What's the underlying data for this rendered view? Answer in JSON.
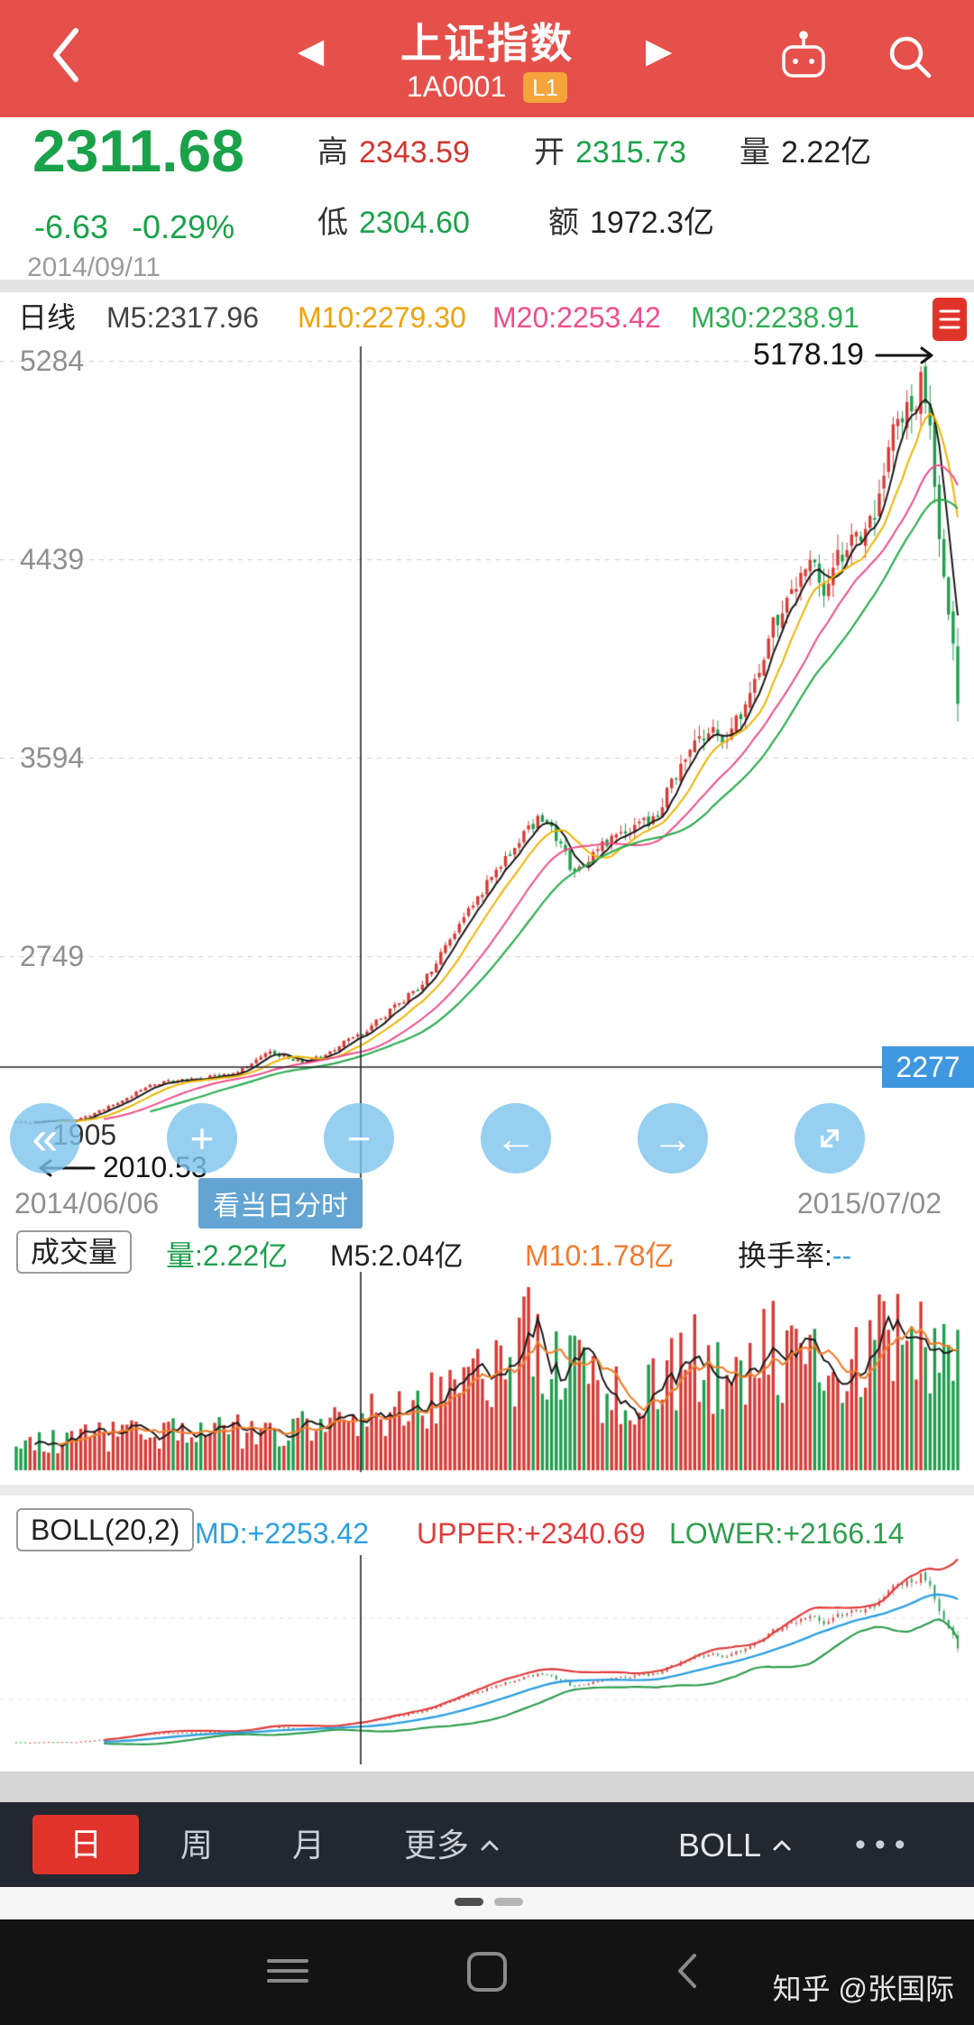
{
  "header": {
    "title": "上证指数",
    "code": "1A0001",
    "grade_badge": "L1"
  },
  "quote": {
    "price": "2311.68",
    "change": "-6.63",
    "change_pct": "-0.29%",
    "date": "2014/09/11",
    "stats": {
      "high_label": "高",
      "high_value": "2343.59",
      "open_label": "开",
      "open_value": "2315.73",
      "volume_label": "量",
      "volume_value": "2.22亿",
      "low_label": "低",
      "low_value": "2304.60",
      "amount_label": "额",
      "amount_value": "1972.3亿"
    }
  },
  "indicator_bar": {
    "period": "日线",
    "ma5": "M5:2317.96",
    "ma10": "M10:2279.30",
    "ma20": "M20:2253.42",
    "ma30": "M30:2238.91"
  },
  "main_chart": {
    "y_labels": [
      "5284",
      "4439",
      "3594",
      "2749"
    ],
    "peak_label": "5178.19",
    "low_label": "2010.53",
    "occluded_label": "1905",
    "crosshair_badge": "2277",
    "date_start": "2014/06/06",
    "date_end": "2015/07/02",
    "intraday_button": "看当日分时"
  },
  "volume_pane": {
    "title": "成交量",
    "volume": "量:2.22亿",
    "ma5": "M5:2.04亿",
    "ma10": "M10:1.78亿",
    "turnover_label": "换手率:",
    "turnover_value": "--"
  },
  "boll_pane": {
    "title": "BOLL(20,2)",
    "md": "MD:+2253.42",
    "upper": "UPPER:+2340.69",
    "lower": "LOWER:+2166.14"
  },
  "bottom_bar": {
    "tab_day": "日",
    "tab_week": "周",
    "tab_month": "月",
    "more": "更多",
    "indicator": "BOLL"
  },
  "icons": {
    "prev": "◀",
    "next": "▶",
    "rewind": "«",
    "zoom_in": "+",
    "zoom_out": "−",
    "pan_left": "←",
    "pan_right": "→",
    "more_options": "•••"
  },
  "watermark": "知乎 @张国际",
  "chart_data": {
    "type": "candlestick",
    "title": "上证指数 日线",
    "x_range": [
      "2014/06/06",
      "2015/07/02"
    ],
    "y_ticks": [
      5284,
      4439,
      3594,
      2749
    ],
    "peak_value": 5178.19,
    "low_value": 2010.53,
    "crosshair_price": 2277,
    "crosshair_x": 400,
    "num_candles": 205,
    "price_anchors": [
      [
        0,
        2040
      ],
      [
        0.07,
        2055
      ],
      [
        0.15,
        2210
      ],
      [
        0.23,
        2245
      ],
      [
        0.27,
        2340
      ],
      [
        0.31,
        2295
      ],
      [
        0.37,
        2430
      ],
      [
        0.43,
        2620
      ],
      [
        0.48,
        2940
      ],
      [
        0.53,
        3230
      ],
      [
        0.56,
        3350
      ],
      [
        0.59,
        3120
      ],
      [
        0.64,
        3260
      ],
      [
        0.68,
        3340
      ],
      [
        0.72,
        3700
      ],
      [
        0.76,
        3690
      ],
      [
        0.8,
        4120
      ],
      [
        0.84,
        4450
      ],
      [
        0.86,
        4320
      ],
      [
        0.88,
        4480
      ],
      [
        0.91,
        4650
      ],
      [
        0.93,
        4940
      ],
      [
        0.955,
        5120
      ],
      [
        0.965,
        5178
      ],
      [
        0.975,
        4750
      ],
      [
        0.985,
        4350
      ],
      [
        1,
        3880
      ]
    ],
    "volume_anchors": [
      [
        0,
        0.2
      ],
      [
        0.1,
        0.24
      ],
      [
        0.2,
        0.27
      ],
      [
        0.3,
        0.3
      ],
      [
        0.37,
        0.36
      ],
      [
        0.45,
        0.5
      ],
      [
        0.5,
        0.62
      ],
      [
        0.55,
        0.95
      ],
      [
        0.58,
        0.72
      ],
      [
        0.62,
        0.55
      ],
      [
        0.68,
        0.62
      ],
      [
        0.72,
        0.78
      ],
      [
        0.76,
        0.66
      ],
      [
        0.8,
        0.82
      ],
      [
        0.84,
        0.96
      ],
      [
        0.87,
        0.78
      ],
      [
        0.9,
        0.92
      ],
      [
        0.93,
        1.0
      ],
      [
        0.96,
        0.88
      ],
      [
        1,
        0.82
      ]
    ],
    "colors": {
      "up": "#d93a35",
      "down": "#1f9e4d",
      "ma5": "#1a1a1a",
      "ma10": "#f0b400",
      "ma20": "#ee4f8b",
      "ma30": "#2fae54",
      "vol_ma5": "#1a1a1a",
      "vol_ma10": "#f08030",
      "boll_mid": "#2da0e0",
      "boll_upper": "#e03c3c",
      "boll_lower": "#2f9e4f",
      "crosshair": "#222222",
      "grid": "#cfcfcf"
    }
  }
}
